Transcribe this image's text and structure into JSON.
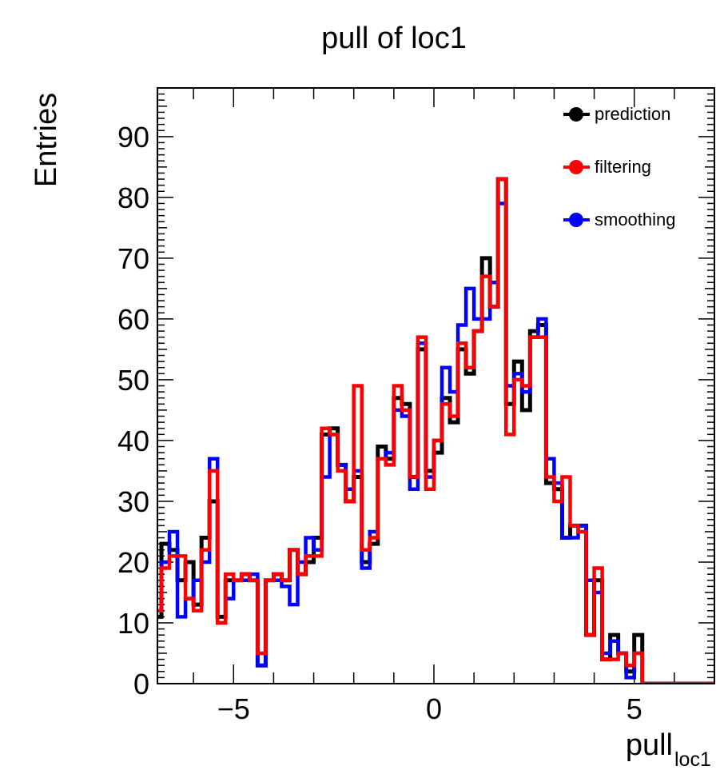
{
  "chart_data": {
    "type": "step-histogram",
    "title": "pull of loc1",
    "xlabel": "pull",
    "xlabel_subscript": "loc1",
    "ylabel": "Entries",
    "xlim": [
      -6.9,
      7.0
    ],
    "ylim": [
      0,
      98
    ],
    "bin_width": 0.2,
    "x_tick_labels": [
      {
        "value": -5,
        "label": "−5"
      },
      {
        "value": 0,
        "label": "0"
      },
      {
        "value": 5,
        "label": "5"
      }
    ],
    "y_tick_labels": [
      0,
      10,
      20,
      30,
      40,
      50,
      60,
      70,
      80,
      90
    ],
    "grid": false,
    "legend_position": "top-right",
    "series": [
      {
        "name": "prediction",
        "color": "#000000",
        "bin_edges_start": -7.0,
        "values": [
          11,
          23,
          22,
          17,
          20,
          13,
          24,
          30,
          11,
          17,
          17,
          18,
          17,
          3,
          17,
          18,
          17,
          22,
          18,
          20,
          24,
          41,
          42,
          36,
          30,
          34,
          20,
          23,
          39,
          37,
          47,
          46,
          34,
          55,
          35,
          38,
          47,
          43,
          55,
          51,
          58,
          70,
          62,
          83,
          46,
          53,
          45,
          58,
          59,
          33,
          32,
          24,
          26,
          26,
          8,
          17,
          4,
          8,
          5,
          2,
          8,
          0,
          0,
          0,
          0,
          0,
          0,
          0,
          0,
          0,
          0,
          0,
          0,
          1,
          0,
          0,
          0,
          0,
          0,
          0,
          0,
          0,
          0,
          0,
          0,
          0,
          0,
          0,
          0,
          0,
          0,
          0,
          0,
          0,
          0,
          0,
          0,
          0,
          0,
          0,
          0,
          0,
          0,
          0,
          0,
          0,
          0,
          0,
          0,
          0
        ]
      },
      {
        "name": "filtering",
        "color": "#ff0000",
        "bin_edges_start": -7.0,
        "values": [
          12,
          19,
          21,
          21,
          14,
          12,
          22,
          35,
          10,
          18,
          17,
          18,
          17,
          5,
          17,
          18,
          17,
          22,
          18,
          21,
          21,
          42,
          41,
          35,
          30,
          49,
          22,
          24,
          37,
          36,
          49,
          45,
          34,
          57,
          32,
          40,
          46,
          44,
          56,
          52,
          58,
          67,
          62,
          83,
          41,
          50,
          49,
          57,
          57,
          34,
          30,
          34,
          26,
          25,
          8,
          19,
          4,
          4,
          5,
          3,
          5,
          0,
          0,
          0,
          0,
          0,
          0,
          0,
          0,
          0,
          0,
          0,
          0,
          2,
          0,
          0,
          0,
          0,
          0,
          0,
          0,
          0,
          0,
          0,
          0,
          0,
          0,
          0,
          0,
          0,
          0,
          0,
          0,
          0,
          0,
          0,
          0,
          0,
          0,
          0,
          0,
          0,
          0,
          0,
          0,
          0,
          0,
          0,
          0,
          0
        ]
      },
      {
        "name": "smoothing",
        "color": "#0000ff",
        "bin_edges_start": -7.0,
        "values": [
          12,
          20,
          25,
          11,
          14,
          17,
          20,
          37,
          10,
          14,
          17,
          17,
          18,
          3,
          17,
          17,
          16,
          13,
          20,
          24,
          22,
          34,
          41,
          36,
          32,
          35,
          19,
          25,
          37,
          38,
          45,
          44,
          32,
          56,
          34,
          40,
          52,
          48,
          59,
          65,
          60,
          60,
          66,
          79,
          49,
          51,
          48,
          57,
          60,
          37,
          33,
          24,
          24,
          26,
          17,
          15,
          5,
          7,
          5,
          1,
          5,
          0,
          0,
          0,
          0,
          0,
          0,
          0,
          0,
          0,
          0,
          0,
          0,
          1,
          0,
          0,
          0,
          0,
          0,
          0,
          0,
          0,
          0,
          0,
          0,
          0,
          0,
          0,
          0,
          0,
          0,
          0,
          0,
          0,
          0,
          0,
          0,
          0,
          0,
          0,
          0,
          0,
          0,
          0,
          0,
          0,
          0,
          0,
          0,
          0
        ]
      }
    ]
  }
}
